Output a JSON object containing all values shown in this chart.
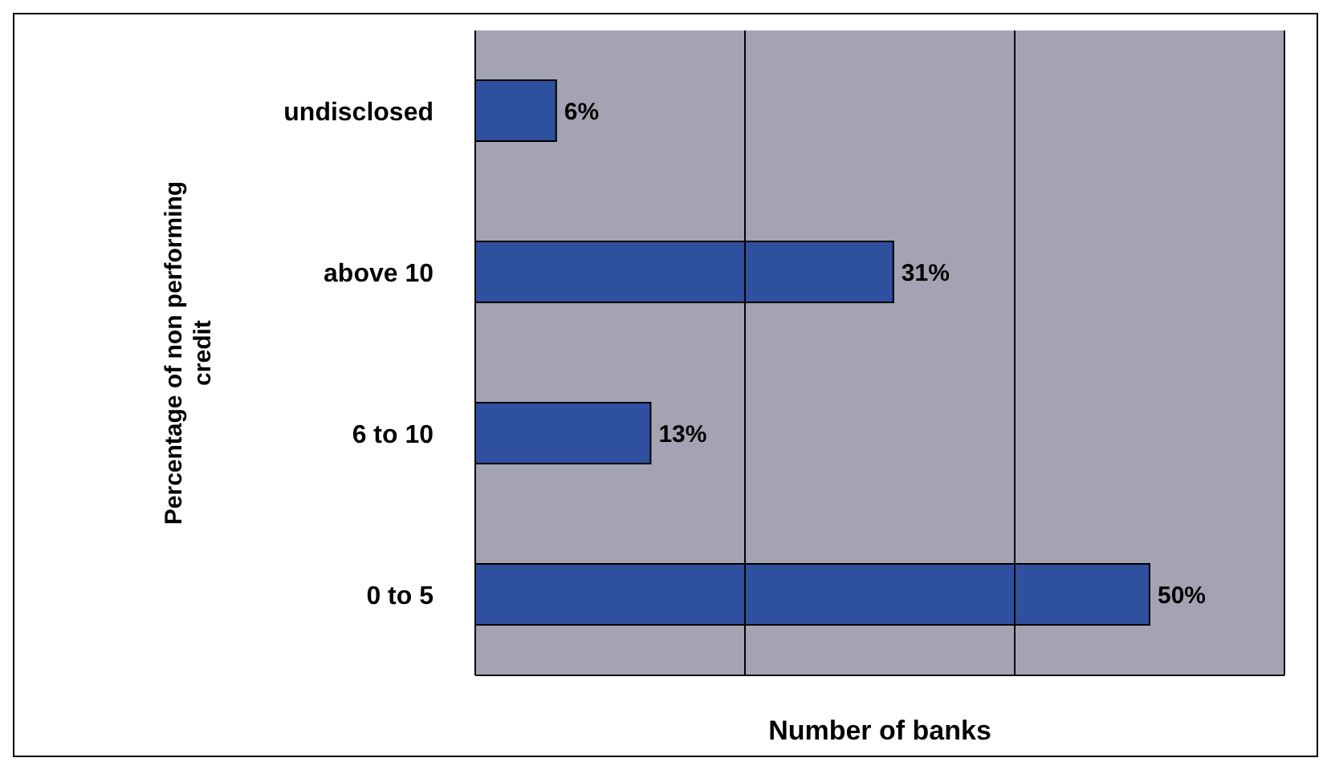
{
  "chart_data": {
    "type": "bar",
    "orientation": "horizontal",
    "xlabel": "Number of banks",
    "ylabel": "Percentage of non performing credit",
    "categories": [
      "undisclosed",
      "above 10",
      "6 to 10",
      "0 to 5"
    ],
    "values": [
      6,
      31,
      13,
      50
    ],
    "value_labels": [
      "6%",
      "31%",
      "13%",
      "50%"
    ],
    "color": "#2f4f9f",
    "xlim": [
      0,
      60
    ],
    "xticks": [
      {
        "value": 0,
        "label": null
      },
      {
        "value": 20,
        "label": null
      },
      {
        "value": 40,
        "label": null
      },
      {
        "value": 60,
        "label": null
      }
    ],
    "grid": "x",
    "tick_labels": "y",
    "legend": false
  }
}
